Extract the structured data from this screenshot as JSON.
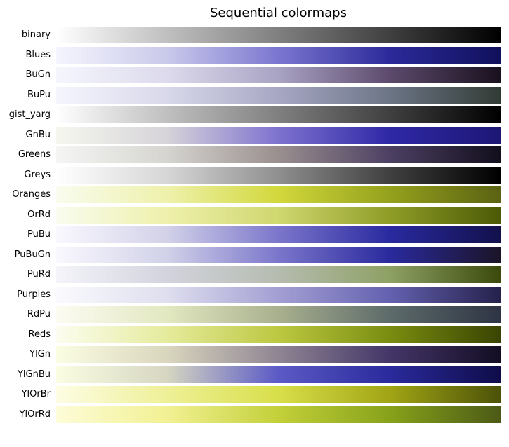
{
  "title": "Sequential colormaps",
  "colormaps": [
    {
      "name": "binary",
      "stops": [
        "#ffffff",
        "#000000"
      ]
    },
    {
      "name": "Blues",
      "stops": [
        "#f5f5fe",
        "#c9c9ea",
        "#7b76d0",
        "#2c2a9a",
        "#10105c"
      ]
    },
    {
      "name": "BuGn",
      "stops": [
        "#f5f6fd",
        "#dcdaec",
        "#a9a3c4",
        "#5d4a6c",
        "#19101e"
      ]
    },
    {
      "name": "BuPu",
      "stops": [
        "#f5f5fe",
        "#d8d8ea",
        "#a7a7c4",
        "#6c7586",
        "#323b35"
      ]
    },
    {
      "name": "gist_yarg",
      "stops": [
        "#ffffff",
        "#000000"
      ]
    },
    {
      "name": "GnBu",
      "stops": [
        "#f5f7ee",
        "#d6d3d9",
        "#7e72cf",
        "#2f28a6",
        "#1c1775"
      ]
    },
    {
      "name": "Greens",
      "stops": [
        "#f5f6f4",
        "#d5d4d0",
        "#9a8f8f",
        "#4d4063",
        "#120e1c"
      ]
    },
    {
      "name": "Greys",
      "stops": [
        "#ffffff",
        "#d6d6d6",
        "#8f8f8f",
        "#404040",
        "#000000"
      ]
    },
    {
      "name": "Oranges",
      "stops": [
        "#f9fcee",
        "#eef1ab",
        "#d2d83c",
        "#94a11c",
        "#5b6213"
      ]
    },
    {
      "name": "OrRd",
      "stops": [
        "#f9fcee",
        "#eef0ab",
        "#cfd76f",
        "#8f9d27",
        "#4c5a06"
      ]
    },
    {
      "name": "PuBu",
      "stops": [
        "#f9f8fe",
        "#d2d1e8",
        "#7b76cb",
        "#2a2aa0",
        "#12104c"
      ]
    },
    {
      "name": "PuBuGn",
      "stops": [
        "#f9f8fe",
        "#d1d1e8",
        "#7b76cb",
        "#2a2a9e",
        "#1b1428"
      ]
    },
    {
      "name": "PuRd",
      "stops": [
        "#f4f4fa",
        "#d2d3dd",
        "#b6bcb0",
        "#8ea165",
        "#3b4a0c"
      ]
    },
    {
      "name": "Purples",
      "stops": [
        "#fafafe",
        "#dedeee",
        "#a39fd3",
        "#6461b0",
        "#25214c"
      ]
    },
    {
      "name": "RdPu",
      "stops": [
        "#fcfbf2",
        "#e2e8c0",
        "#a9b08e",
        "#5d6b6a",
        "#2e3444"
      ]
    },
    {
      "name": "Reds",
      "stops": [
        "#fcfdf0",
        "#e5eb9c",
        "#bcc840",
        "#7a8d10",
        "#3a4402"
      ]
    },
    {
      "name": "YlGn",
      "stops": [
        "#fbfde2",
        "#d9d6be",
        "#8f8593",
        "#443668",
        "#130d24"
      ]
    },
    {
      "name": "YlGnBu",
      "stops": [
        "#fbfde2",
        "#d6d6c2",
        "#5b5ac6",
        "#2a2a9c",
        "#0f0c4a"
      ]
    },
    {
      "name": "YlOrBr",
      "stops": [
        "#fdfde4",
        "#eef097",
        "#d8df4a",
        "#a1a515",
        "#4c5208"
      ]
    },
    {
      "name": "YlOrRd",
      "stops": [
        "#fdfcd8",
        "#f2f193",
        "#c3d039",
        "#87a21a",
        "#4c5a16"
      ]
    }
  ]
}
